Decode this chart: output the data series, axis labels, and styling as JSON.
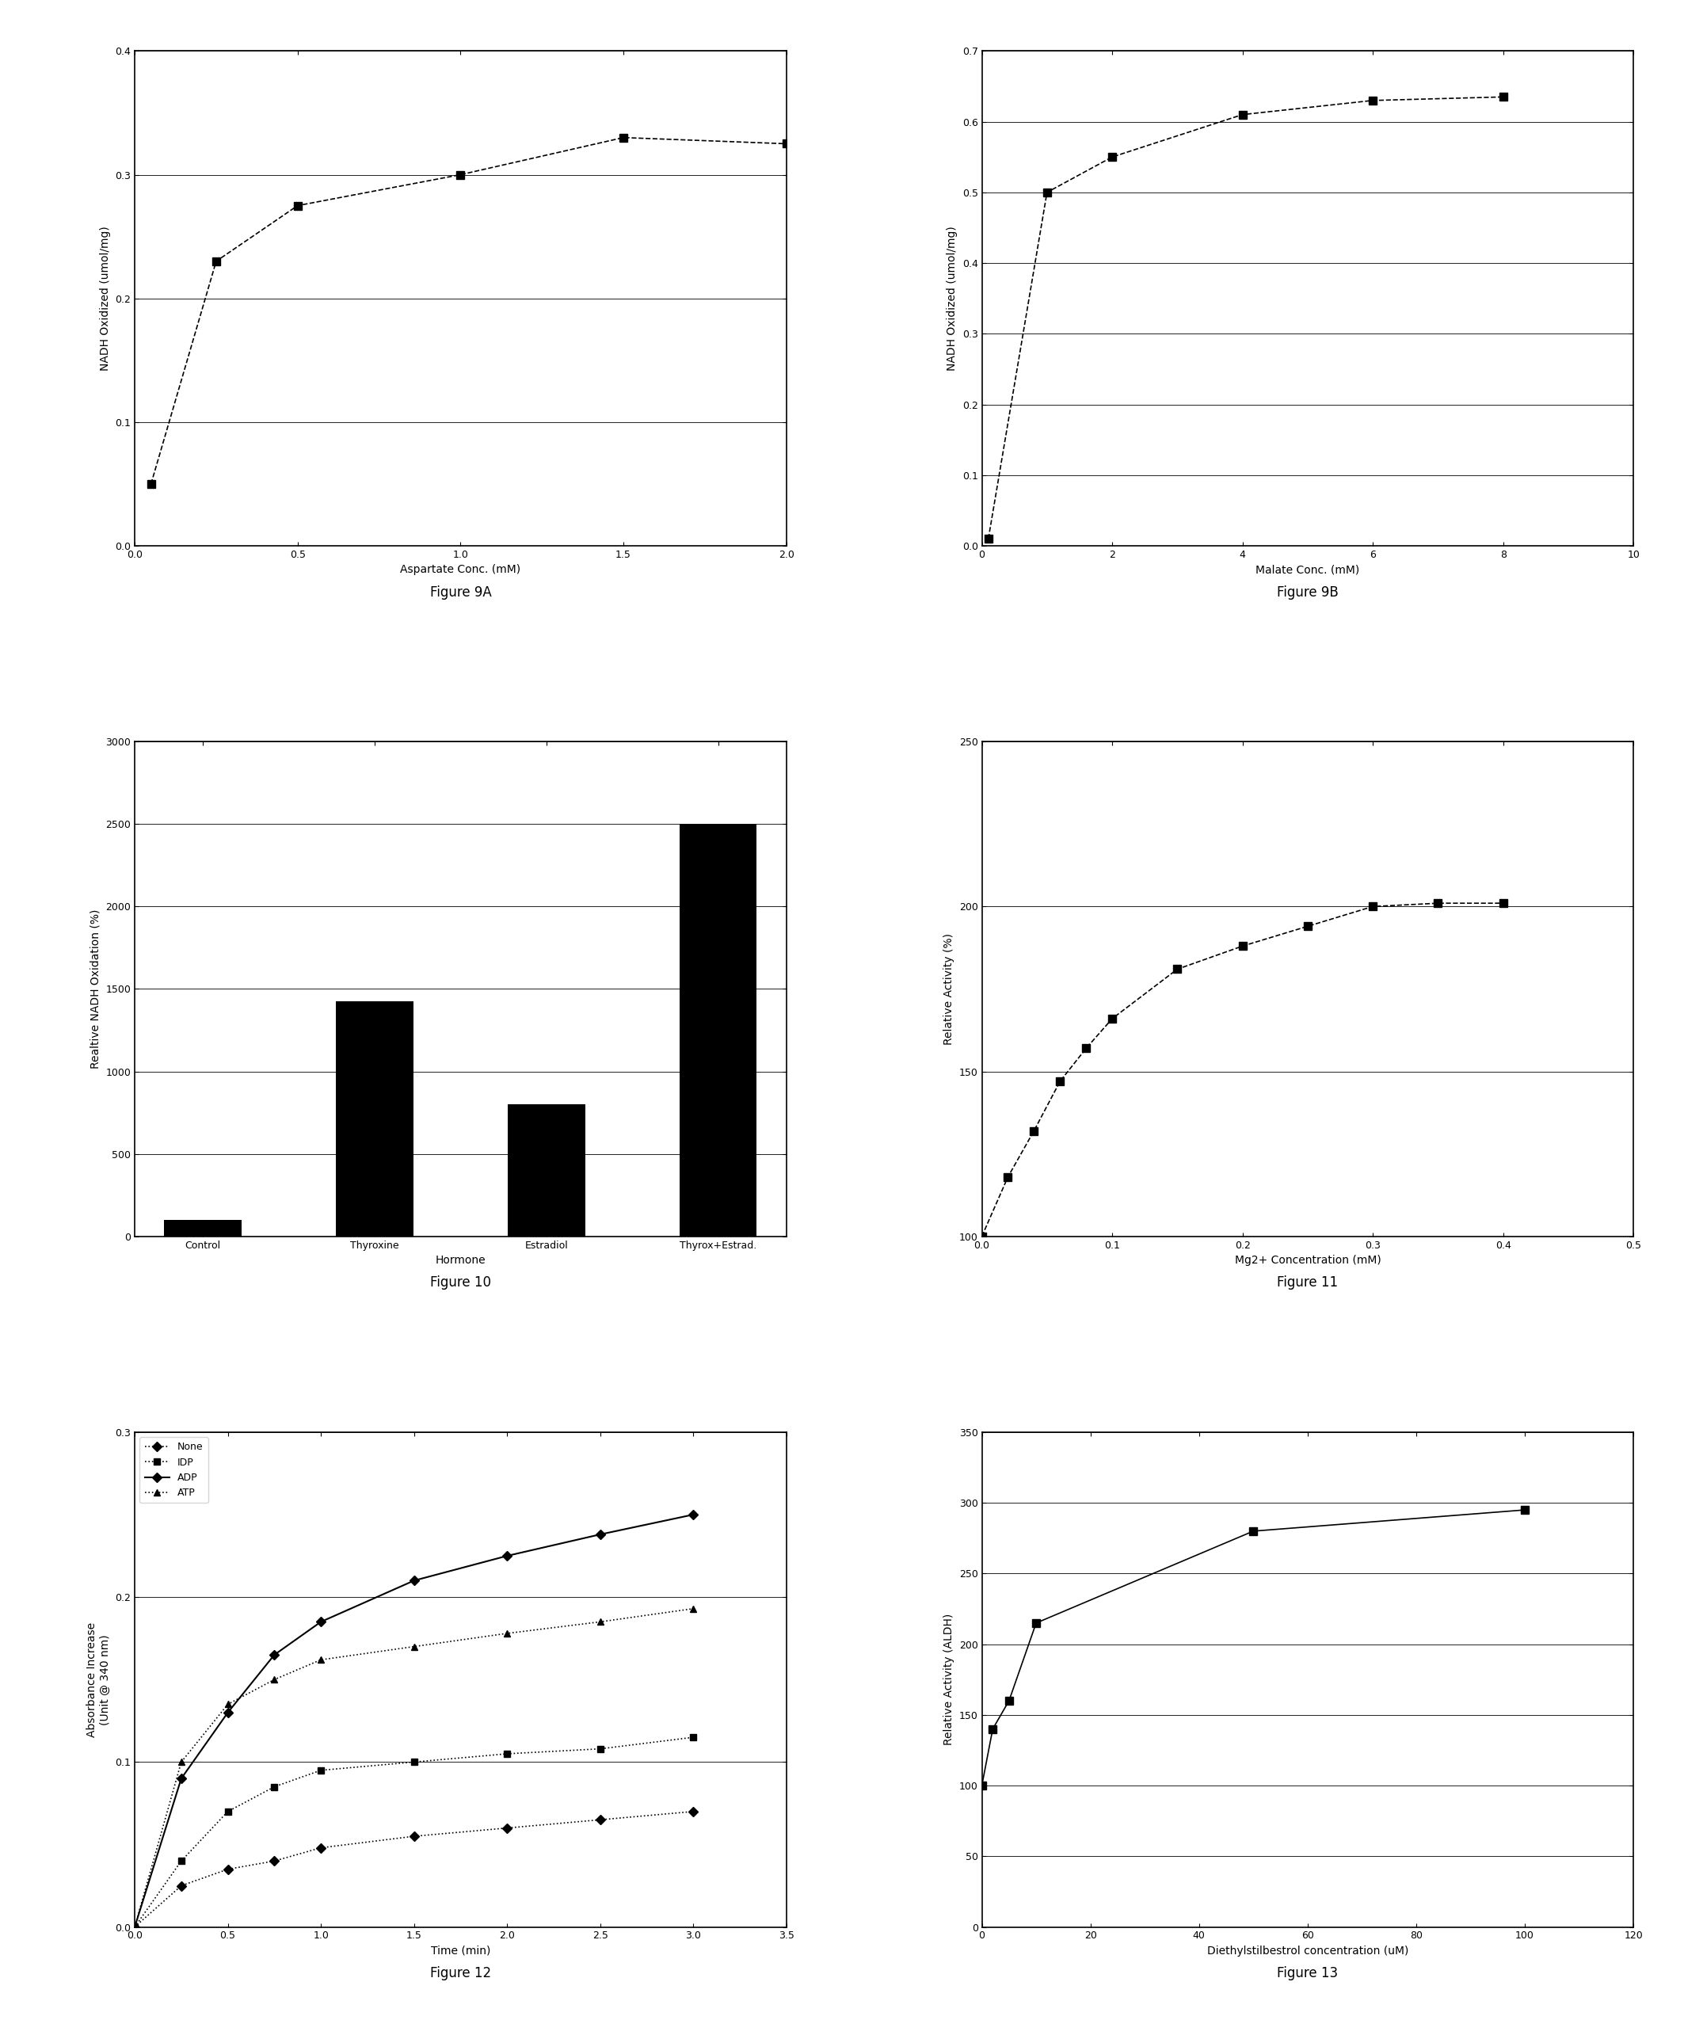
{
  "fig9a": {
    "caption": "Figure 9A",
    "xlabel": "Aspartate Conc. (mM)",
    "ylabel": "NADH Oxidized (umol/mg)",
    "x": [
      0.05,
      0.25,
      0.5,
      1.0,
      1.5,
      2.0
    ],
    "y": [
      0.05,
      0.23,
      0.275,
      0.3,
      0.33,
      0.325
    ],
    "xlim": [
      0.0,
      2.0
    ],
    "ylim": [
      0.0,
      0.4
    ],
    "xticks": [
      0.0,
      0.5,
      1.0,
      1.5,
      2.0
    ],
    "yticks": [
      0.0,
      0.1,
      0.2,
      0.3,
      0.4
    ]
  },
  "fig9b": {
    "caption": "Figure 9B",
    "xlabel": "Malate Conc. (mM)",
    "ylabel": "NADH Oxidized (umol/mg)",
    "x": [
      0.1,
      1.0,
      2.0,
      4.0,
      6.0,
      8.0
    ],
    "y": [
      0.01,
      0.5,
      0.55,
      0.61,
      0.63,
      0.635
    ],
    "xlim": [
      0.0,
      10.0
    ],
    "ylim": [
      0.0,
      0.7
    ],
    "xticks": [
      0.0,
      2.0,
      4.0,
      6.0,
      8.0,
      10.0
    ],
    "yticks": [
      0.0,
      0.1,
      0.2,
      0.3,
      0.4,
      0.5,
      0.6,
      0.7
    ]
  },
  "fig10": {
    "caption": "Figure 10",
    "xlabel": "Hormone",
    "ylabel": "Realtive NADH Oxidation (%)",
    "categories": [
      "Control",
      "Thyroxine",
      "Estradiol",
      "Thyrox+Estrad."
    ],
    "values": [
      100,
      1425,
      800,
      2500
    ],
    "ylim": [
      0,
      3000
    ],
    "yticks": [
      0,
      500,
      1000,
      1500,
      2000,
      2500,
      3000
    ]
  },
  "fig11": {
    "caption": "Figure 11",
    "xlabel": "Mg2+ Concentration (mM)",
    "ylabel": "Relative Activity (%)",
    "x": [
      0.0,
      0.02,
      0.04,
      0.06,
      0.08,
      0.1,
      0.15,
      0.2,
      0.25,
      0.3,
      0.35,
      0.4
    ],
    "y": [
      100,
      118,
      132,
      147,
      157,
      166,
      181,
      188,
      194,
      200,
      201,
      201
    ],
    "xlim": [
      0.0,
      0.5
    ],
    "ylim": [
      100,
      250
    ],
    "xticks": [
      0.0,
      0.1,
      0.2,
      0.3,
      0.4,
      0.5
    ],
    "yticks": [
      100,
      150,
      200,
      250
    ]
  },
  "fig12": {
    "caption": "Figure 12",
    "xlabel": "Time (min)",
    "ylabel": "Absorbance Increase\n(Unit @ 340 nm)",
    "none_x": [
      0.0,
      0.25,
      0.5,
      0.75,
      1.0,
      1.5,
      2.0,
      2.5,
      3.0
    ],
    "none_y": [
      0.0,
      0.025,
      0.035,
      0.04,
      0.048,
      0.055,
      0.06,
      0.065,
      0.07
    ],
    "idp_x": [
      0.0,
      0.25,
      0.5,
      0.75,
      1.0,
      1.5,
      2.0,
      2.5,
      3.0
    ],
    "idp_y": [
      0.0,
      0.04,
      0.07,
      0.085,
      0.095,
      0.1,
      0.105,
      0.108,
      0.115
    ],
    "adp_x": [
      0.0,
      0.25,
      0.5,
      0.75,
      1.0,
      1.5,
      2.0,
      2.5,
      3.0
    ],
    "adp_y": [
      0.0,
      0.09,
      0.13,
      0.165,
      0.185,
      0.21,
      0.225,
      0.238,
      0.25
    ],
    "atp_x": [
      0.0,
      0.25,
      0.5,
      0.75,
      1.0,
      1.5,
      2.0,
      2.5,
      3.0
    ],
    "atp_y": [
      0.0,
      0.1,
      0.135,
      0.15,
      0.162,
      0.17,
      0.178,
      0.185,
      0.193
    ],
    "xlim": [
      0.0,
      3.5
    ],
    "ylim": [
      0.0,
      0.3
    ],
    "xticks": [
      0.0,
      0.5,
      1.0,
      1.5,
      2.0,
      2.5,
      3.0,
      3.5
    ],
    "yticks": [
      0.0,
      0.1,
      0.2,
      0.3
    ]
  },
  "fig13": {
    "caption": "Figure 13",
    "xlabel": "Diethylstilbestrol concentration (uM)",
    "ylabel": "Relative Activity (ALDH)",
    "x": [
      0,
      2,
      5,
      10,
      50,
      100
    ],
    "y": [
      100,
      140,
      160,
      215,
      280,
      295
    ],
    "xlim": [
      0,
      120
    ],
    "ylim": [
      0,
      350
    ],
    "xticks": [
      0,
      20,
      40,
      60,
      80,
      100,
      120
    ],
    "yticks": [
      0,
      50,
      100,
      150,
      200,
      250,
      300,
      350
    ]
  },
  "bg": "#ffffff",
  "lc": "#000000"
}
